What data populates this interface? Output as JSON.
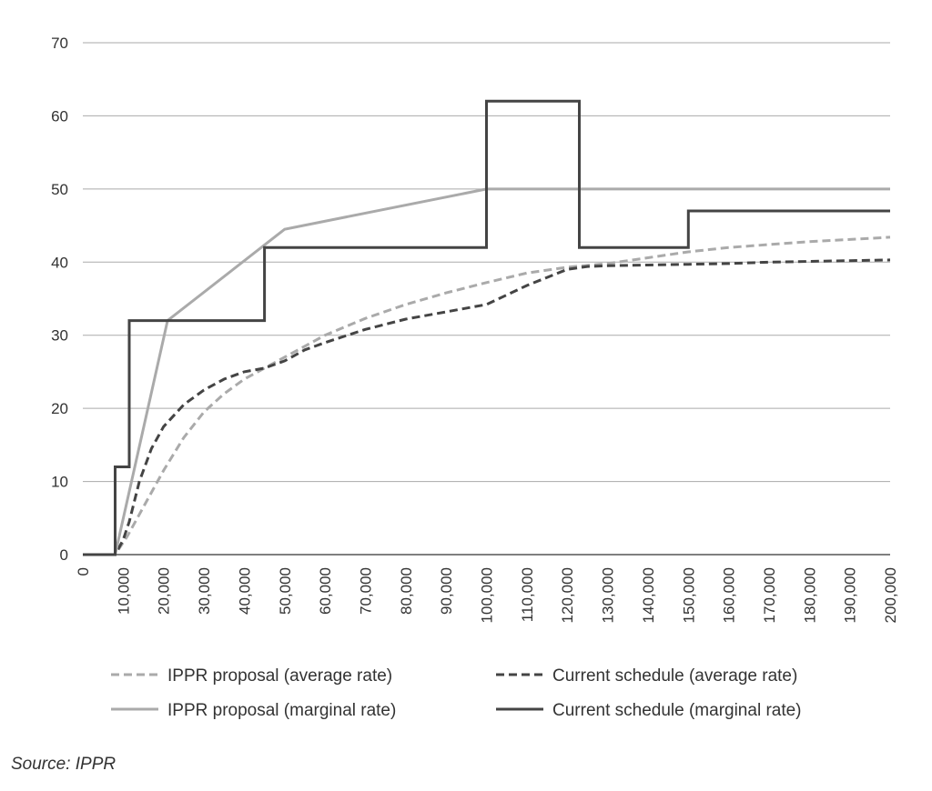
{
  "chart_data": {
    "type": "line",
    "title": "",
    "xlabel": "",
    "ylabel": "",
    "xlim": [
      0,
      200000
    ],
    "ylim": [
      0,
      70
    ],
    "grid": true,
    "y_ticks": [
      0,
      10,
      20,
      30,
      40,
      50,
      60,
      70
    ],
    "x_ticks": [
      0,
      10000,
      20000,
      30000,
      40000,
      50000,
      60000,
      70000,
      80000,
      90000,
      100000,
      110000,
      120000,
      130000,
      140000,
      150000,
      160000,
      170000,
      180000,
      190000,
      200000
    ],
    "x_tick_labels": [
      "0",
      "10,000",
      "20,000",
      "30,000",
      "40,000",
      "50,000",
      "60,000",
      "70,000",
      "80,000",
      "90,000",
      "100,000",
      "110,000",
      "120,000",
      "130,000",
      "140,000",
      "150,000",
      "160,000",
      "170,000",
      "180,000",
      "190,000",
      "200,000"
    ],
    "legend_position": "bottom",
    "series": [
      {
        "name": "IPPR proposal (average rate)",
        "color": "#aaaaaa",
        "style": "dashed",
        "x": [
          0,
          8000,
          11000,
          14000,
          17000,
          20000,
          25000,
          30000,
          35000,
          40000,
          45000,
          50000,
          55000,
          60000,
          70000,
          80000,
          90000,
          100000,
          110000,
          120000,
          130000,
          140000,
          150000,
          160000,
          170000,
          180000,
          190000,
          200000
        ],
        "y": [
          0,
          0,
          2.5,
          5.5,
          8.5,
          11.5,
          16,
          19.5,
          22,
          24,
          25.5,
          27,
          28.5,
          30,
          32.3,
          34.2,
          35.8,
          37.2,
          38.5,
          39.3,
          39.8,
          40.6,
          41.4,
          42,
          42.4,
          42.8,
          43.1,
          43.4
        ]
      },
      {
        "name": "Current schedule (average rate)",
        "color": "#444444",
        "style": "dashed",
        "x": [
          0,
          8000,
          10000,
          11500,
          14000,
          17000,
          20000,
          25000,
          30000,
          35000,
          40000,
          45000,
          50000,
          55000,
          60000,
          70000,
          80000,
          90000,
          100000,
          110000,
          120000,
          125000,
          130000,
          140000,
          150000,
          160000,
          170000,
          180000,
          190000,
          200000
        ],
        "y": [
          0,
          0,
          2,
          4.5,
          10,
          14.5,
          17.5,
          20.5,
          22.5,
          24,
          25,
          25.5,
          26.5,
          28,
          29,
          30.8,
          32.2,
          33.2,
          34.2,
          36.8,
          39,
          39.4,
          39.5,
          39.6,
          39.7,
          39.8,
          40,
          40.1,
          40.2,
          40.3
        ]
      },
      {
        "name": "IPPR proposal (marginal rate)",
        "color": "#aaaaaa",
        "style": "solid",
        "x": [
          0,
          8000,
          21000,
          50000,
          100000,
          200000
        ],
        "y": [
          0,
          0,
          32,
          44.5,
          50,
          50
        ]
      },
      {
        "name": "Current schedule (marginal rate)",
        "color": "#444444",
        "style": "solid",
        "x": [
          0,
          8000,
          8000,
          11500,
          11500,
          45000,
          45000,
          100000,
          100000,
          123000,
          123000,
          150000,
          150000,
          200000
        ],
        "y": [
          0,
          0,
          12,
          12,
          32,
          32,
          42,
          42,
          62,
          62,
          42,
          42,
          47,
          47
        ]
      }
    ]
  },
  "source_note": "Source: IPPR"
}
